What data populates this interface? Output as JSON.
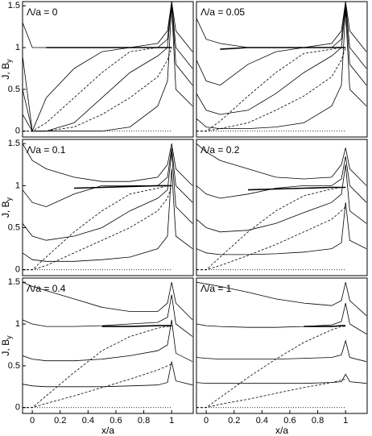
{
  "chart_data": [
    {
      "type": "line",
      "title": "Λ/a = 0",
      "ylabel": "J, B",
      "ylabel_subscript": "y",
      "x": [
        -0.07,
        0,
        0.1,
        0.3,
        0.5,
        0.7,
        0.9,
        0.97,
        1,
        1.03,
        1.15
      ],
      "xlim": [
        -0.07,
        1.155
      ],
      "ylim": [
        -0.07,
        1.55
      ],
      "yticks": [
        0,
        0.5,
        1,
        1.5
      ],
      "series": [
        {
          "color": "#000",
          "style": "solid",
          "values": [
            1.3,
            1.0,
            1.0,
            1.0,
            1.0,
            1.0,
            1.05,
            1.2,
            1.55,
            1.2,
            0.95
          ]
        },
        {
          "color": "#000",
          "style": "solid",
          "values": [
            0.9,
            0.0,
            0.4,
            0.75,
            0.95,
            1.0,
            1.0,
            1.1,
            1.55,
            1.0,
            0.75
          ]
        },
        {
          "color": "#000",
          "style": "solid",
          "values": [
            0.5,
            0.0,
            0.0,
            0.1,
            0.4,
            0.7,
            0.9,
            1.0,
            1.55,
            0.8,
            0.55
          ]
        },
        {
          "color": "#000",
          "style": "solid",
          "values": [
            0.2,
            0.0,
            0.0,
            0.0,
            0.0,
            0.05,
            0.3,
            0.6,
            1.5,
            0.5,
            0.3
          ]
        },
        {
          "color": "#000",
          "style": "dashed",
          "values": [
            0,
            0,
            0.1,
            0.4,
            0.7,
            0.95,
            1.0,
            1.0,
            1.0,
            null,
            null
          ]
        },
        {
          "color": "#000",
          "style": "dashed",
          "values": [
            0,
            0,
            0,
            0.05,
            0.2,
            0.4,
            0.65,
            0.85,
            1.0,
            null,
            null
          ]
        },
        {
          "color": "#000",
          "style": "thick",
          "values": [
            null,
            null,
            1,
            1,
            1,
            1,
            1,
            1,
            1,
            null,
            null
          ]
        },
        {
          "color": "#000",
          "style": "dotted",
          "values": [
            null,
            0,
            0,
            0,
            0,
            0,
            0,
            0,
            0,
            null,
            null
          ]
        }
      ]
    },
    {
      "type": "line",
      "title": "Λ/a = 0.05",
      "x": [
        -0.07,
        0,
        0.1,
        0.3,
        0.5,
        0.7,
        0.9,
        0.97,
        1,
        1.03,
        1.15
      ],
      "xlim": [
        -0.07,
        1.155
      ],
      "ylim": [
        -0.07,
        1.55
      ],
      "series": [
        {
          "color": "#000",
          "style": "solid",
          "values": [
            1.35,
            1.1,
            1.05,
            1.0,
            1.0,
            1.0,
            1.05,
            1.2,
            1.55,
            1.2,
            0.95
          ]
        },
        {
          "color": "#000",
          "style": "solid",
          "values": [
            0.85,
            0.6,
            0.55,
            0.8,
            0.95,
            1.0,
            1.0,
            1.1,
            1.55,
            1.0,
            0.75
          ]
        },
        {
          "color": "#000",
          "style": "solid",
          "values": [
            0.45,
            0.25,
            0.2,
            0.25,
            0.45,
            0.7,
            0.9,
            1.0,
            1.5,
            0.8,
            0.55
          ]
        },
        {
          "color": "#000",
          "style": "solid",
          "values": [
            0.15,
            0.05,
            0.03,
            0.03,
            0.05,
            0.1,
            0.3,
            0.55,
            1.45,
            0.5,
            0.3
          ]
        },
        {
          "color": "#000",
          "style": "dashed",
          "values": [
            0,
            0,
            0.12,
            0.42,
            0.7,
            0.93,
            0.98,
            1.0,
            1.0,
            null,
            null
          ]
        },
        {
          "color": "#000",
          "style": "dashed",
          "values": [
            0,
            0,
            0.03,
            0.1,
            0.25,
            0.42,
            0.65,
            0.85,
            1.0,
            null,
            null
          ]
        },
        {
          "color": "#000",
          "style": "thick",
          "values": [
            null,
            null,
            0.98,
            1,
            1,
            1,
            1,
            1,
            1,
            null,
            null
          ]
        },
        {
          "color": "#000",
          "style": "dotted",
          "values": [
            null,
            0,
            0,
            0,
            0,
            0,
            0,
            0,
            0,
            null,
            null
          ]
        }
      ]
    },
    {
      "type": "line",
      "title": "Λ/a = 0.1",
      "ylabel": "J, B",
      "ylabel_subscript": "y",
      "x": [
        -0.07,
        0,
        0.1,
        0.3,
        0.5,
        0.7,
        0.9,
        0.97,
        1,
        1.03,
        1.15
      ],
      "xlim": [
        -0.07,
        1.155
      ],
      "ylim": [
        -0.07,
        1.55
      ],
      "yticks": [
        0,
        0.5,
        1,
        1.5
      ],
      "series": [
        {
          "color": "#000",
          "style": "solid",
          "values": [
            1.5,
            1.3,
            1.2,
            1.1,
            1.05,
            1.05,
            1.1,
            1.25,
            1.5,
            1.2,
            1.0
          ]
        },
        {
          "color": "#000",
          "style": "solid",
          "values": [
            0.95,
            0.8,
            0.75,
            0.9,
            1.0,
            1.0,
            1.0,
            1.1,
            1.45,
            1.0,
            0.8
          ]
        },
        {
          "color": "#000",
          "style": "solid",
          "values": [
            0.55,
            0.4,
            0.35,
            0.4,
            0.5,
            0.7,
            0.85,
            0.95,
            1.4,
            0.75,
            0.55
          ]
        },
        {
          "color": "#000",
          "style": "solid",
          "values": [
            0.2,
            0.12,
            0.1,
            0.1,
            0.12,
            0.15,
            0.25,
            0.4,
            1.2,
            0.4,
            0.25
          ]
        },
        {
          "color": "#000",
          "style": "dashed",
          "values": [
            0,
            0,
            0.15,
            0.45,
            0.7,
            0.9,
            0.97,
            1.0,
            1.0,
            null,
            null
          ]
        },
        {
          "color": "#000",
          "style": "dashed",
          "values": [
            0,
            0,
            0.05,
            0.2,
            0.35,
            0.5,
            0.7,
            0.85,
            1.0,
            null,
            null
          ]
        },
        {
          "color": "#000",
          "style": "thick",
          "values": [
            null,
            null,
            null,
            0.97,
            0.98,
            0.99,
            1,
            1,
            1,
            null,
            null
          ]
        },
        {
          "color": "#000",
          "style": "dotted",
          "values": [
            null,
            0,
            0,
            0,
            0,
            0,
            0,
            0,
            0,
            null,
            null
          ]
        }
      ]
    },
    {
      "type": "line",
      "title": "Λ/a = 0.2",
      "x": [
        -0.07,
        0,
        0.1,
        0.3,
        0.5,
        0.7,
        0.9,
        0.97,
        1,
        1.03,
        1.15
      ],
      "xlim": [
        -0.07,
        1.155
      ],
      "ylim": [
        -0.07,
        1.55
      ],
      "series": [
        {
          "color": "#000",
          "style": "solid",
          "values": [
            1.5,
            1.4,
            1.3,
            1.2,
            1.1,
            1.08,
            1.1,
            1.25,
            1.45,
            1.2,
            1.0
          ]
        },
        {
          "color": "#000",
          "style": "solid",
          "values": [
            1.0,
            0.9,
            0.85,
            0.9,
            0.97,
            1.0,
            1.0,
            1.08,
            1.35,
            1.0,
            0.8
          ]
        },
        {
          "color": "#000",
          "style": "solid",
          "values": [
            0.6,
            0.5,
            0.45,
            0.47,
            0.55,
            0.68,
            0.8,
            0.9,
            1.25,
            0.7,
            0.55
          ]
        },
        {
          "color": "#000",
          "style": "solid",
          "values": [
            0.25,
            0.2,
            0.18,
            0.18,
            0.19,
            0.21,
            0.25,
            0.32,
            0.8,
            0.35,
            0.25
          ]
        },
        {
          "color": "#000",
          "style": "dashed",
          "values": [
            0,
            0,
            0.15,
            0.45,
            0.7,
            0.88,
            0.96,
            0.98,
            0.98,
            null,
            null
          ]
        },
        {
          "color": "#000",
          "style": "dashed",
          "values": [
            0,
            0,
            0.05,
            0.17,
            0.3,
            0.45,
            0.6,
            0.7,
            0.75,
            null,
            null
          ]
        },
        {
          "color": "#000",
          "style": "thick",
          "values": [
            null,
            null,
            null,
            0.95,
            0.96,
            0.97,
            0.98,
            0.98,
            0.98,
            null,
            null
          ]
        },
        {
          "color": "#000",
          "style": "dotted",
          "values": [
            null,
            0,
            0,
            0,
            0,
            0,
            0,
            0,
            0,
            null,
            null
          ]
        }
      ]
    },
    {
      "type": "line",
      "title": "Λ/a = 0.4",
      "ylabel": "J, B",
      "ylabel_subscript": "y",
      "xlabel": "x/a",
      "x": [
        -0.07,
        0,
        0.1,
        0.3,
        0.5,
        0.7,
        0.9,
        0.97,
        1,
        1.03,
        1.15
      ],
      "xlim": [
        -0.07,
        1.155
      ],
      "ylim": [
        -0.07,
        1.55
      ],
      "yticks": [
        0,
        0.5,
        1,
        1.5
      ],
      "xticks": [
        0,
        0.2,
        0.4,
        0.6,
        0.8,
        1
      ],
      "series": [
        {
          "color": "#000",
          "style": "solid",
          "values": [
            1.5,
            1.45,
            1.4,
            1.3,
            1.2,
            1.15,
            1.15,
            1.25,
            1.5,
            1.25,
            1.05
          ]
        },
        {
          "color": "#000",
          "style": "solid",
          "values": [
            1.05,
            1.0,
            0.97,
            0.97,
            0.98,
            1.0,
            1.02,
            1.08,
            1.35,
            1.0,
            0.85
          ]
        },
        {
          "color": "#000",
          "style": "solid",
          "values": [
            0.62,
            0.58,
            0.56,
            0.56,
            0.58,
            0.62,
            0.68,
            0.75,
            1.05,
            0.65,
            0.55
          ]
        },
        {
          "color": "#000",
          "style": "solid",
          "values": [
            0.28,
            0.26,
            0.25,
            0.25,
            0.25,
            0.26,
            0.27,
            0.3,
            0.55,
            0.32,
            0.27
          ]
        },
        {
          "color": "#000",
          "style": "dashed",
          "values": [
            0,
            0,
            0.14,
            0.42,
            0.68,
            0.85,
            0.95,
            0.97,
            0.97,
            null,
            null
          ]
        },
        {
          "color": "#000",
          "style": "dashed",
          "values": [
            0,
            0,
            0.05,
            0.14,
            0.24,
            0.34,
            0.45,
            0.5,
            0.52,
            null,
            null
          ]
        },
        {
          "color": "#000",
          "style": "thick",
          "values": [
            null,
            null,
            null,
            null,
            0.97,
            0.97,
            0.98,
            0.98,
            0.98,
            null,
            null
          ]
        },
        {
          "color": "#000",
          "style": "dotted",
          "values": [
            null,
            0,
            0,
            0,
            0,
            0,
            0,
            0,
            0,
            null,
            null
          ]
        }
      ]
    },
    {
      "type": "line",
      "title": "Λ/a = 1",
      "xlabel": "x/a",
      "x": [
        -0.07,
        0,
        0.1,
        0.3,
        0.5,
        0.7,
        0.9,
        0.97,
        1,
        1.03,
        1.15
      ],
      "xlim": [
        -0.07,
        1.155
      ],
      "ylim": [
        -0.07,
        1.55
      ],
      "xticks": [
        0,
        0.2,
        0.4,
        0.6,
        0.8,
        1
      ],
      "series": [
        {
          "color": "#000",
          "style": "solid",
          "values": [
            1.5,
            1.48,
            1.45,
            1.38,
            1.3,
            1.25,
            1.22,
            1.28,
            1.5,
            1.28,
            1.1
          ]
        },
        {
          "color": "#000",
          "style": "solid",
          "values": [
            1.0,
            0.98,
            0.97,
            0.96,
            0.96,
            0.97,
            0.99,
            1.03,
            1.25,
            1.0,
            0.88
          ]
        },
        {
          "color": "#000",
          "style": "solid",
          "values": [
            0.6,
            0.59,
            0.58,
            0.58,
            0.58,
            0.59,
            0.6,
            0.63,
            0.8,
            0.6,
            0.55
          ]
        },
        {
          "color": "#000",
          "style": "solid",
          "values": [
            0.3,
            0.29,
            0.29,
            0.29,
            0.29,
            0.29,
            0.3,
            0.31,
            0.4,
            0.31,
            0.29
          ]
        },
        {
          "color": "#000",
          "style": "dashed",
          "values": [
            0,
            0,
            0.12,
            0.36,
            0.58,
            0.78,
            0.93,
            0.97,
            0.97,
            null,
            null
          ]
        },
        {
          "color": "#000",
          "style": "dashed",
          "values": [
            0,
            0,
            0.04,
            0.1,
            0.17,
            0.24,
            0.3,
            0.33,
            0.34,
            null,
            null
          ]
        },
        {
          "color": "#000",
          "style": "thick",
          "values": [
            null,
            null,
            null,
            null,
            null,
            0.97,
            0.97,
            0.98,
            0.98,
            null,
            null
          ]
        },
        {
          "color": "#000",
          "style": "dotted",
          "values": [
            null,
            0,
            0,
            0,
            0,
            0,
            0,
            0,
            0,
            null,
            null
          ]
        }
      ]
    }
  ]
}
